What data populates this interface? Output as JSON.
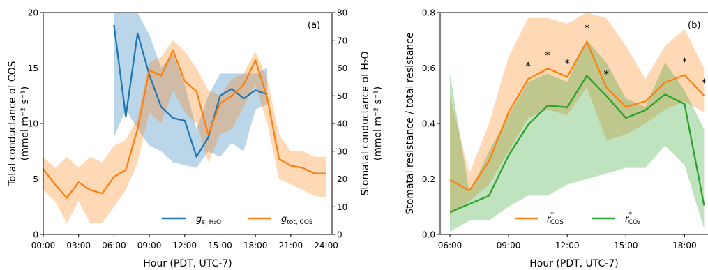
{
  "chart_data": [
    {
      "type": "line",
      "panel_label": "(a)",
      "xlabel": "Hour (PDT, UTC-7)",
      "ylabel_left": [
        "Total conductance of COS",
        "(mmol m⁻² s⁻¹)"
      ],
      "ylabel_right": [
        "Stomatal conductance of H₂O",
        "(mmol m⁻² s⁻¹)"
      ],
      "xlim": [
        0,
        24.5
      ],
      "ylim_left": [
        0,
        20
      ],
      "ylim_right": [
        0,
        80
      ],
      "xticks": [
        0,
        3,
        6,
        9,
        12,
        15,
        18,
        21,
        24
      ],
      "xtick_labels": [
        "00:00",
        "03:00",
        "06:00",
        "09:00",
        "12:00",
        "15:00",
        "18:00",
        "21:00",
        "24:00"
      ],
      "yticks_left": [
        0,
        5,
        10,
        15,
        20
      ],
      "yticks_right": [
        0,
        10,
        20,
        30,
        40,
        50,
        60,
        70,
        80
      ],
      "legend_position": "lower-right",
      "series": [
        {
          "name_base": "g",
          "name_sub": "s, H₂O",
          "axis": "right",
          "color": "#1f77b4",
          "x": [
            6,
            7,
            8,
            9,
            10,
            11,
            12,
            13,
            14,
            15,
            16,
            17,
            18,
            19
          ],
          "y": [
            75.5,
            42.5,
            72.5,
            57.5,
            46,
            42,
            41,
            28,
            35,
            50,
            52.5,
            49,
            52,
            50.5
          ],
          "band_lower": [
            35,
            45,
            38,
            32,
            30,
            26,
            25,
            24,
            30,
            28,
            33,
            30,
            45,
            47
          ],
          "band_upper": [
            80,
            83,
            80,
            72,
            60,
            65,
            54,
            38,
            50,
            58,
            58,
            58,
            58,
            60
          ]
        },
        {
          "name_base": "g",
          "name_sub": "tot, COS",
          "axis": "left",
          "color": "#ff7f0e",
          "x": [
            0,
            1,
            2,
            3,
            4,
            5,
            6,
            7,
            8,
            9,
            10,
            11,
            12,
            13,
            14,
            15,
            16,
            17,
            18,
            19,
            20,
            21,
            22,
            23,
            24
          ],
          "y": [
            5.9,
            4.5,
            3.3,
            4.7,
            4.0,
            3.7,
            5.2,
            5.8,
            9.5,
            14.8,
            14.3,
            16.6,
            13.8,
            12.9,
            9.0,
            11.8,
            12.5,
            13.5,
            15.7,
            12.3,
            6.8,
            6.2,
            6.0,
            5.5,
            5.5
          ],
          "band_lower": [
            4.0,
            3.0,
            1.0,
            3.0,
            1.0,
            1.0,
            2.5,
            4.0,
            6.5,
            11.0,
            10.0,
            13.0,
            11.0,
            10.0,
            6.5,
            9.0,
            9.5,
            11.5,
            13.5,
            10.0,
            5.0,
            4.5,
            4.0,
            3.5,
            3.3
          ],
          "band_upper": [
            7.0,
            6.0,
            7.0,
            6.0,
            7.0,
            6.5,
            8.0,
            8.5,
            10.5,
            15.5,
            16.0,
            17.5,
            16.5,
            15.0,
            13.0,
            12.5,
            14.0,
            14.5,
            16.5,
            14.0,
            9.0,
            7.5,
            7.5,
            7.0,
            7.0
          ]
        }
      ]
    },
    {
      "type": "line",
      "panel_label": "(b)",
      "xlabel": "Hour (PDT, UTC-7)",
      "ylabel": "Stomatal resistance / total resistance",
      "xlim": [
        5.5,
        19.2
      ],
      "ylim": [
        0,
        0.8
      ],
      "xticks": [
        6,
        9,
        12,
        15,
        18
      ],
      "xtick_labels": [
        "06:00",
        "09:00",
        "12:00",
        "15:00",
        "18:00"
      ],
      "yticks": [
        0.0,
        0.2,
        0.4,
        0.6,
        0.8
      ],
      "ytick_labels": [
        "0.0",
        "0.2",
        "0.4",
        "0.6",
        "0.8"
      ],
      "legend_position": "lower-center",
      "series": [
        {
          "name_base": "r",
          "name_sup": "*",
          "name_sub": "COS",
          "color": "#ff7f0e",
          "x": [
            6,
            7,
            8,
            9,
            10,
            11,
            12,
            13,
            14,
            15,
            16,
            17,
            18,
            19
          ],
          "y": [
            0.197,
            0.158,
            0.265,
            0.44,
            0.56,
            0.598,
            0.568,
            0.695,
            0.53,
            0.46,
            0.48,
            0.548,
            0.575,
            0.5
          ],
          "band_lower": [
            0.07,
            0.12,
            0.18,
            0.3,
            0.42,
            0.45,
            0.43,
            0.53,
            0.34,
            0.36,
            0.4,
            0.45,
            0.48,
            0.44
          ],
          "band_upper": [
            0.5,
            0.22,
            0.4,
            0.64,
            0.78,
            0.78,
            0.76,
            0.8,
            0.78,
            0.68,
            0.56,
            0.68,
            0.74,
            0.6
          ]
        },
        {
          "name_base": "r",
          "name_sup": "*",
          "name_sub": "CO₂",
          "color": "#2ca02c",
          "x": [
            6,
            7,
            8,
            9,
            10,
            11,
            12,
            13,
            14,
            15,
            16,
            17,
            18,
            19
          ],
          "y": [
            0.08,
            0.11,
            0.14,
            0.285,
            0.395,
            0.465,
            0.458,
            0.572,
            0.5,
            0.42,
            0.448,
            0.505,
            0.47,
            0.105
          ],
          "band_lower": [
            0.01,
            0.05,
            0.05,
            0.1,
            0.14,
            0.14,
            0.18,
            0.2,
            0.22,
            0.24,
            0.24,
            0.32,
            0.25,
            0.02
          ],
          "band_upper": [
            0.58,
            0.15,
            0.3,
            0.43,
            0.55,
            0.58,
            0.55,
            0.7,
            0.62,
            0.49,
            0.46,
            0.62,
            0.52,
            0.38
          ]
        }
      ],
      "significance_marker": "*",
      "significance_x": [
        10,
        11,
        12,
        13,
        14,
        18,
        19
      ]
    }
  ]
}
